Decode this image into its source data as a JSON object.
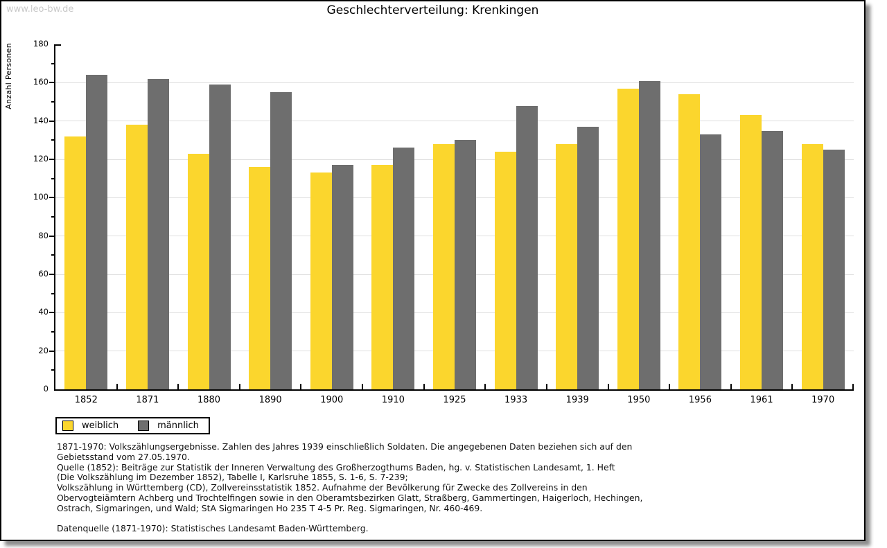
{
  "watermark": "www.leo-bw.de",
  "chart_data": {
    "type": "bar",
    "title": "Geschlechterverteilung: Krenkingen",
    "ylabel": "Anzahl Personen",
    "xlabel": "",
    "ylim": [
      0,
      180
    ],
    "ytick_step": 20,
    "yminor_step": 10,
    "grid": true,
    "legend_position": "bottom-left",
    "bar_colors": {
      "weiblich": "#FBD62D",
      "maennlich": "#6E6E6E"
    },
    "categories": [
      "1852",
      "1871",
      "1880",
      "1890",
      "1900",
      "1910",
      "1925",
      "1933",
      "1939",
      "1950",
      "1956",
      "1961",
      "1970"
    ],
    "series": [
      {
        "name": "weiblich",
        "color": "#FBD62D",
        "values": [
          132,
          138,
          123,
          116,
          113,
          117,
          128,
          124,
          128,
          157,
          154,
          143,
          128
        ]
      },
      {
        "name": "männlich",
        "color": "#6E6E6E",
        "values": [
          164,
          162,
          159,
          155,
          117,
          126,
          130,
          148,
          137,
          161,
          133,
          135,
          125
        ]
      }
    ]
  },
  "footer": {
    "lines": [
      "1871-1970: Volkszählungsergebnisse. Zahlen des Jahres 1939 einschließlich Soldaten. Die angegebenen Daten beziehen sich auf den",
      "Gebietsstand vom 27.05.1970.",
      "Quelle (1852): Beiträge zur Statistik der Inneren Verwaltung des Großherzogthums Baden, hg. v. Statistischen Landesamt, 1. Heft",
      "(Die Volkszählung im Dezember 1852), Tabelle I, Karlsruhe 1855, S. 1-6, S. 7-239;",
      "Volkszählung in Württemberg (CD), Zollvereinsstatistik 1852. Aufnahme der Bevölkerung für Zwecke des Zollvereins in den",
      "Obervogteiämtern Achberg und Trochtelfingen sowie in den Oberamtsbezirken Glatt, Straßberg, Gammertingen, Haigerloch, Hechingen,",
      "Ostrach, Sigmaringen, und Wald; StA Sigmaringen Ho 235 T 4-5 Pr. Reg. Sigmaringen, Nr. 460-469.",
      "",
      "Datenquelle (1871-1970): Statistisches Landesamt Baden-Württemberg."
    ]
  }
}
